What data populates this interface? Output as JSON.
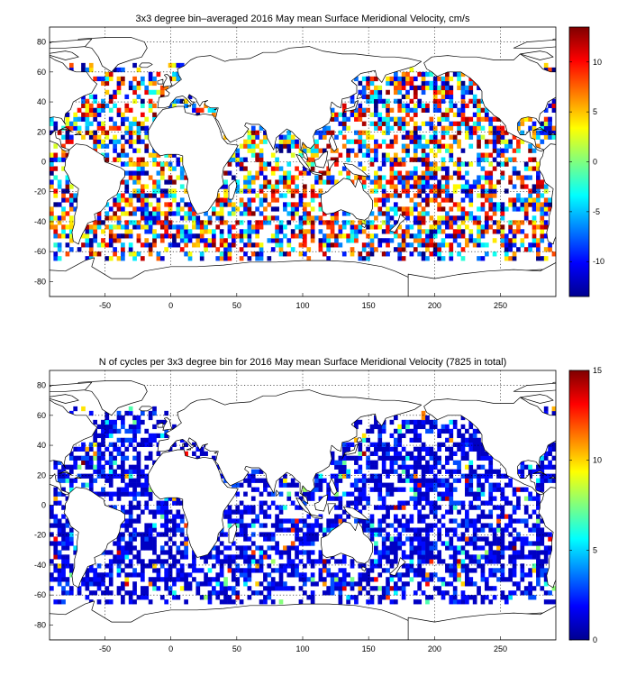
{
  "chart_data": [
    {
      "type": "heatmap",
      "title": "3x3 degree bin–averaged 2016 May mean Surface Meridional Velocity, cm/s",
      "xlabel": "",
      "ylabel": "",
      "xlim": [
        -92,
        292
      ],
      "ylim": [
        -90,
        90
      ],
      "xticks": [
        -50,
        0,
        50,
        100,
        150,
        200,
        250
      ],
      "yticks": [
        -80,
        -60,
        -40,
        -20,
        0,
        20,
        40,
        60,
        80
      ],
      "bin_size_deg": 3,
      "grid": true,
      "colorbar": {
        "min": -13.5,
        "max": 13.5,
        "ticks": [
          -10,
          -5,
          0,
          5,
          10
        ],
        "colormap": "jet"
      },
      "data_summary": "Scattered ocean bins with mixed positive (red) and negative (blue) meridional velocities between about 65N and 65S"
    },
    {
      "type": "heatmap",
      "title": "N of cycles per 3x3 degree bin for 2016 May mean Surface Meridional Velocity (7825 in total)",
      "xlabel": "",
      "ylabel": "",
      "xlim": [
        -92,
        292
      ],
      "ylim": [
        -90,
        90
      ],
      "xticks": [
        -50,
        0,
        50,
        100,
        150,
        200,
        250
      ],
      "yticks": [
        -80,
        -60,
        -40,
        -20,
        0,
        20,
        40,
        60,
        80
      ],
      "bin_size_deg": 3,
      "grid": true,
      "total_cycles": 7825,
      "colorbar": {
        "min": 0,
        "max": 15,
        "ticks": [
          0,
          5,
          10,
          15
        ],
        "colormap": "jet"
      },
      "data_summary": "Most ocean bins contain 1 to 3 cycles (blue), with a few higher counts in the Mediterranean, Red Sea and equatorial Pacific"
    }
  ]
}
